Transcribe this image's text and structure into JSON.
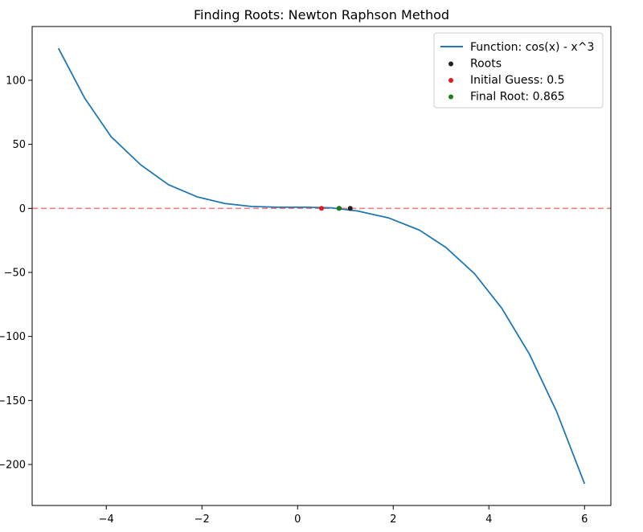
{
  "chart_data": {
    "type": "line",
    "title": "Finding Roots: Newton Raphson Method",
    "xlabel": "",
    "ylabel": "",
    "xlim": [
      -5.55,
      6.55
    ],
    "ylim": [
      -232,
      142
    ],
    "xticks": [
      -4,
      -2,
      0,
      2,
      4,
      6
    ],
    "yticks": [
      100,
      50,
      0,
      -50,
      -100,
      -150,
      -200
    ],
    "grid": false,
    "legend_position": "top-right",
    "series": [
      {
        "name": "Function: cos(x) - x^3",
        "kind": "line",
        "color": "#1f77b4",
        "x": [
          -5.0,
          -4.45,
          -3.9,
          -3.28,
          -2.7,
          -2.1,
          -1.52,
          -0.97,
          -0.4,
          0.15,
          0.7,
          1.25,
          1.9,
          2.55,
          3.1,
          3.7,
          4.27,
          4.85,
          5.42,
          6.0
        ],
        "y": [
          125,
          86,
          56,
          34,
          18.5,
          9,
          3.8,
          1.5,
          0.9,
          0.9,
          0.4,
          -2,
          -7.4,
          -17,
          -30.5,
          -51,
          -78,
          -114,
          -159,
          -215
        ]
      },
      {
        "name": "Roots",
        "kind": "scatter",
        "color": "#222222",
        "x": [
          0.87,
          1.1
        ],
        "y": [
          0,
          0
        ]
      },
      {
        "name": "Initial Guess: 0.5",
        "kind": "scatter",
        "color": "#e31a1c",
        "x": [
          0.5
        ],
        "y": [
          0
        ]
      },
      {
        "name": "Final Root: 0.865",
        "kind": "scatter",
        "color": "#1a7f1a",
        "x": [
          0.865
        ],
        "y": [
          0
        ]
      }
    ],
    "reference_line": {
      "axis": "y",
      "value": 0,
      "color": "#f08080",
      "style": "dashed"
    }
  }
}
